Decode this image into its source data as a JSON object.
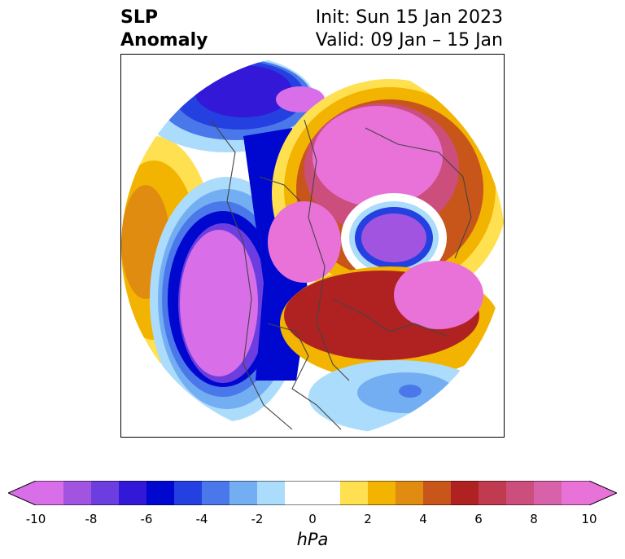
{
  "title": {
    "variable_line1": "SLP",
    "variable_line2": "Anomaly",
    "init": "Init: Sun 15 Jan 2023",
    "valid": "Valid: 09 Jan – 15 Jan"
  },
  "colorbar": {
    "units": "hPa",
    "ticks": [
      "-10",
      "-8",
      "-6",
      "-4",
      "-2",
      "0",
      "2",
      "4",
      "6",
      "8",
      "10"
    ],
    "levels": [
      {
        "range": [
          -10,
          -9
        ],
        "color": "#d86ee8"
      },
      {
        "range": [
          -9,
          -8
        ],
        "color": "#a054e0"
      },
      {
        "range": [
          -8,
          -7
        ],
        "color": "#6c3ee0"
      },
      {
        "range": [
          -7,
          -6
        ],
        "color": "#3418d8"
      },
      {
        "range": [
          -6,
          -5
        ],
        "color": "#0008d0"
      },
      {
        "range": [
          -5,
          -4
        ],
        "color": "#2440e0"
      },
      {
        "range": [
          -4,
          -3
        ],
        "color": "#4a78ea"
      },
      {
        "range": [
          -3,
          -2
        ],
        "color": "#74aef2"
      },
      {
        "range": [
          -2,
          -1
        ],
        "color": "#acdcfc"
      },
      {
        "range": [
          -1,
          1
        ],
        "color": "#ffffff"
      },
      {
        "range": [
          1,
          2
        ],
        "color": "#ffe050"
      },
      {
        "range": [
          2,
          3
        ],
        "color": "#f2b400"
      },
      {
        "range": [
          3,
          4
        ],
        "color": "#e08c10"
      },
      {
        "range": [
          4,
          5
        ],
        "color": "#c8561a"
      },
      {
        "range": [
          5,
          6
        ],
        "color": "#b02222"
      },
      {
        "range": [
          6,
          7
        ],
        "color": "#c03a50"
      },
      {
        "range": [
          7,
          8
        ],
        "color": "#cc4e7c"
      },
      {
        "range": [
          8,
          9
        ],
        "color": "#d862aa"
      },
      {
        "range": [
          9,
          10
        ],
        "color": "#e872d8"
      }
    ],
    "extend_low_color": "#d86ee8",
    "extend_high_color": "#e872d8"
  }
}
